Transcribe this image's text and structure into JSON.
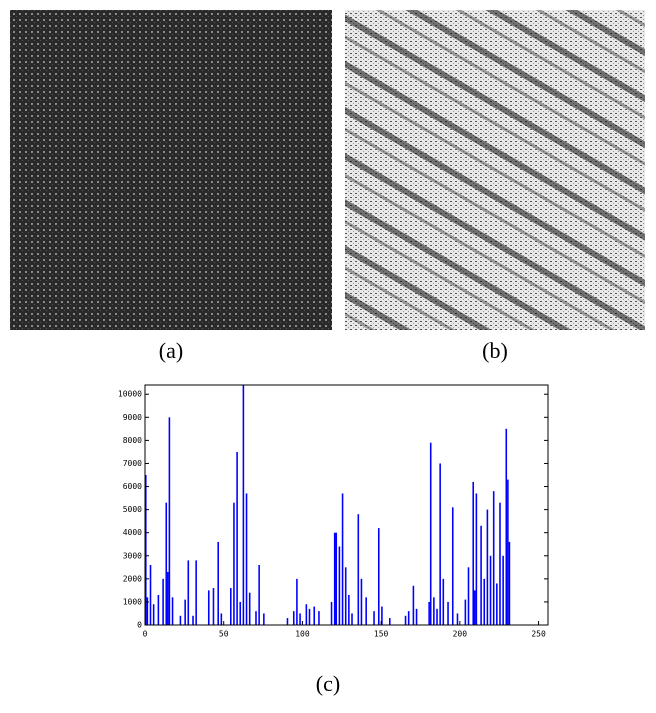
{
  "figure": {
    "captions": [
      "(a)",
      "(b)",
      "(c)"
    ]
  },
  "chart_data": {
    "type": "bar",
    "color": "#0000ff",
    "x": [
      0,
      1,
      3,
      5,
      8,
      11,
      13,
      14,
      15,
      17,
      22,
      25,
      27,
      30,
      32,
      40,
      43,
      46,
      48,
      54,
      56,
      58,
      60,
      62,
      64,
      66,
      70,
      72,
      75,
      90,
      94,
      96,
      98,
      102,
      104,
      107,
      110,
      118,
      120,
      121,
      123,
      125,
      127,
      129,
      131,
      135,
      137,
      140,
      145,
      148,
      150,
      155,
      165,
      167,
      170,
      172,
      180,
      181,
      183,
      185,
      187,
      189,
      192,
      195,
      198,
      203,
      205,
      208,
      209,
      210,
      213,
      215,
      217,
      219,
      221,
      223,
      225,
      227,
      229,
      230,
      231
    ],
    "values": [
      6500,
      1200,
      2600,
      900,
      1300,
      2000,
      5300,
      2300,
      9000,
      1200,
      400,
      1100,
      2800,
      400,
      2800,
      1500,
      1600,
      3600,
      500,
      1600,
      5300,
      7500,
      1000,
      10400,
      5700,
      1400,
      600,
      2600,
      500,
      300,
      600,
      2000,
      500,
      900,
      700,
      800,
      600,
      1000,
      4000,
      4000,
      3400,
      5700,
      2500,
      1300,
      500,
      4800,
      2000,
      1200,
      600,
      4200,
      800,
      300,
      400,
      600,
      1700,
      700,
      1000,
      7900,
      1200,
      700,
      7000,
      2000,
      1000,
      5100,
      500,
      1100,
      2500,
      6200,
      1500,
      5700,
      4300,
      2000,
      5000,
      3000,
      5800,
      1800,
      5300,
      3000,
      8500,
      6300,
      3600
    ],
    "xlim": [
      0,
      256
    ],
    "ylim": [
      0,
      10400
    ],
    "xticks": [
      0,
      50,
      100,
      150,
      200,
      250
    ],
    "yticks": [
      0,
      1000,
      2000,
      3000,
      4000,
      5000,
      6000,
      7000,
      8000,
      9000,
      10000
    ]
  }
}
